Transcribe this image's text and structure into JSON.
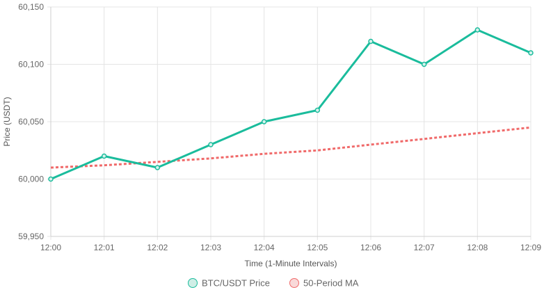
{
  "chart_data": {
    "type": "line",
    "categories": [
      "12:00",
      "12:01",
      "12:02",
      "12:03",
      "12:04",
      "12:05",
      "12:06",
      "12:07",
      "12:08",
      "12:09"
    ],
    "series": [
      {
        "name": "BTC/USDT Price",
        "values": [
          60000,
          60020,
          60010,
          60030,
          60050,
          60060,
          60120,
          60100,
          60130,
          60110
        ],
        "color": "#1abc9c",
        "style": "solid",
        "markers": true
      },
      {
        "name": "50-Period MA",
        "values": [
          60010,
          60012,
          60015,
          60018,
          60022,
          60025,
          60030,
          60035,
          60040,
          60045
        ],
        "color": "#f06a6a",
        "style": "dotted",
        "markers": false
      }
    ],
    "xlabel": "Time (1-Minute Intervals)",
    "ylabel": "Price (USDT)",
    "ylim": [
      59950,
      60150
    ],
    "yticks": [
      59950,
      60000,
      60050,
      60100,
      60150
    ],
    "ytick_labels": [
      "59,950",
      "60,000",
      "60,050",
      "60,100",
      "60,150"
    ],
    "grid": true,
    "legend_position": "bottom-center"
  }
}
